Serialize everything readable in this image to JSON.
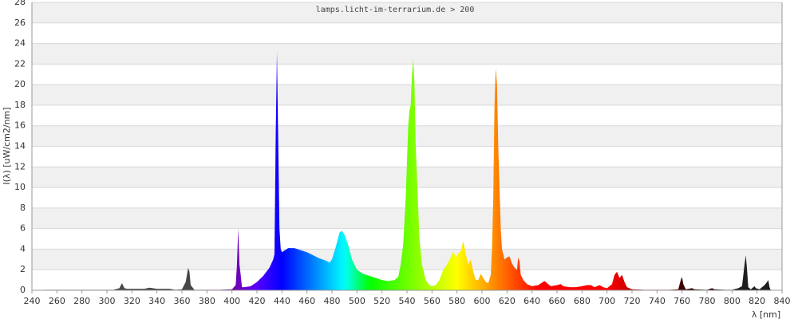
{
  "chart_data": {
    "type": "spectrum",
    "title": "lamps.licht-im-terrarium.de > 200",
    "xlabel": "λ [nm]",
    "ylabel": "I(λ) [uW/cm2/nm]",
    "xlim": [
      240,
      840
    ],
    "ylim": [
      0,
      28
    ],
    "xticks": [
      240,
      260,
      280,
      300,
      320,
      340,
      360,
      380,
      400,
      420,
      440,
      460,
      480,
      500,
      520,
      540,
      560,
      580,
      600,
      620,
      640,
      660,
      680,
      700,
      720,
      740,
      760,
      780,
      800,
      820,
      840
    ],
    "yticks": [
      0,
      2,
      4,
      6,
      8,
      10,
      12,
      14,
      16,
      18,
      20,
      22,
      24,
      26,
      28
    ],
    "grid": true,
    "x": [
      250,
      260,
      270,
      280,
      290,
      300,
      305,
      310,
      312,
      314,
      316,
      320,
      330,
      334,
      340,
      350,
      355,
      360,
      363,
      365,
      366,
      367,
      370,
      380,
      390,
      400,
      403,
      404,
      405,
      406,
      407,
      408,
      410,
      415,
      420,
      425,
      430,
      433,
      434,
      435,
      436,
      437,
      438,
      439,
      440,
      445,
      450,
      455,
      460,
      465,
      470,
      475,
      478,
      480,
      483,
      486,
      488,
      490,
      493,
      496,
      500,
      505,
      510,
      515,
      520,
      525,
      530,
      533,
      535,
      537,
      539,
      541,
      542,
      543,
      544,
      545,
      546,
      547,
      548,
      549,
      550,
      552,
      555,
      558,
      560,
      563,
      566,
      569,
      572,
      575,
      577,
      579,
      581,
      583,
      585,
      587,
      589,
      591,
      593,
      595,
      597,
      599,
      601,
      603,
      605,
      607,
      608,
      609,
      610,
      611,
      612,
      613,
      614,
      615,
      616,
      618,
      620,
      622,
      624,
      626,
      628,
      629,
      630,
      631,
      633,
      636,
      640,
      645,
      650,
      652,
      655,
      660,
      663,
      665,
      670,
      675,
      680,
      684,
      687,
      690,
      694,
      697,
      700,
      704,
      706,
      708,
      710,
      712,
      714,
      716,
      720,
      730,
      740,
      750,
      757,
      759,
      760,
      761,
      763,
      768,
      770,
      780,
      784,
      786,
      795,
      800,
      805,
      808,
      810,
      811,
      812,
      813,
      815,
      818,
      819,
      822,
      824,
      826,
      828,
      829,
      830,
      831
    ],
    "values": [
      0.05,
      0.05,
      0.05,
      0.05,
      0.05,
      0.05,
      0.05,
      0.2,
      0.7,
      0.2,
      0.15,
      0.15,
      0.15,
      0.25,
      0.15,
      0.15,
      0.05,
      0.1,
      0.8,
      2.2,
      1.8,
      0.5,
      0.05,
      0.05,
      0.05,
      0.1,
      0.5,
      2.5,
      6,
      2.5,
      1.5,
      0.3,
      0.3,
      0.4,
      0.8,
      1.4,
      2.2,
      3,
      3.5,
      15,
      23.2,
      14.5,
      6,
      4,
      3.7,
      4.1,
      4.1,
      3.9,
      3.7,
      3.4,
      3.1,
      2.9,
      2.7,
      3,
      4.2,
      5.6,
      5.8,
      5.4,
      4.4,
      3,
      2,
      1.6,
      1.4,
      1.2,
      1,
      0.9,
      1,
      1.3,
      2.5,
      4.5,
      9,
      16,
      17.5,
      18,
      21,
      22.5,
      20,
      14,
      11,
      8,
      5,
      2.5,
      1,
      0.5,
      0.4,
      0.5,
      1,
      2,
      2.5,
      3.2,
      3.8,
      3.2,
      3.6,
      3.8,
      4.8,
      3.5,
      2.5,
      3,
      1.8,
      1,
      1,
      1.6,
      1.2,
      0.8,
      0.7,
      1.5,
      4,
      9,
      18,
      21.6,
      20,
      14,
      10,
      6,
      4,
      3,
      3.2,
      3.3,
      2.6,
      2.2,
      2,
      3.2,
      2.8,
      1.5,
      1,
      0.6,
      0.4,
      0.5,
      0.9,
      0.7,
      0.4,
      0.5,
      0.6,
      0.4,
      0.3,
      0.3,
      0.4,
      0.5,
      0.5,
      0.3,
      0.5,
      0.3,
      0.2,
      0.6,
      1.5,
      1.8,
      1.2,
      1.5,
      0.8,
      0.3,
      0.1,
      0.05,
      0.05,
      0.05,
      0.1,
      1,
      1.3,
      0.6,
      0.1,
      0.2,
      0.1,
      0.05,
      0.2,
      0.1,
      0.05,
      0.05,
      0.2,
      0.4,
      2.5,
      3.4,
      2,
      0.3,
      0.1,
      0.4,
      0.2,
      0.1,
      0.3,
      0.5,
      0.8,
      1,
      0.3,
      0
    ]
  }
}
